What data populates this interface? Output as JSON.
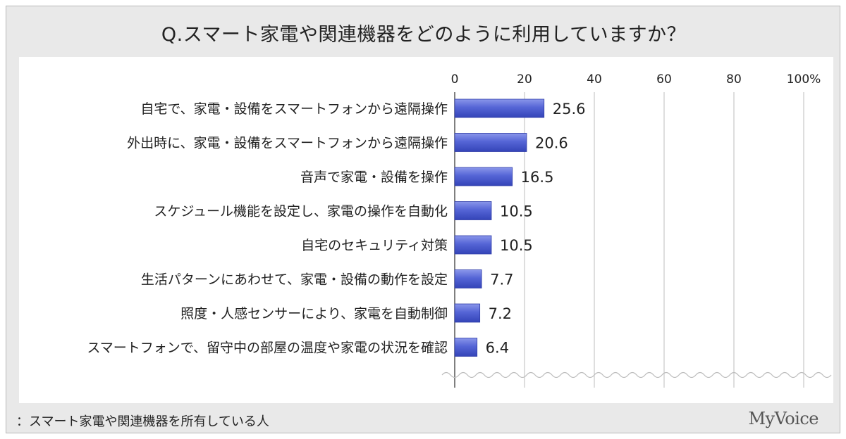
{
  "title": "Q.スマート家電や関連機器をどのように利用していますか？",
  "footnote": "：スマート家電や関連機器を所有している人",
  "brand": "MyVoice",
  "chart_data": {
    "type": "bar",
    "orientation": "horizontal",
    "categories": [
      "自宅で、家電・設備をスマートフォンから遠隔操作",
      "外出時に、家電・設備をスマートフォンから遠隔操作",
      "音声で家電・設備を操作",
      "スケジュール機能を設定し、家電の操作を自動化",
      "自宅のセキュリティ対策",
      "生活パターンにあわせて、家電・設備の動作を設定",
      "照度・人感センサーにより、家電を自動制御",
      "スマートフォンで、留守中の部屋の温度や家電の状況を確認"
    ],
    "values": [
      25.6,
      20.6,
      16.5,
      10.5,
      10.5,
      7.7,
      7.2,
      6.4
    ],
    "value_labels": [
      "25.6",
      "20.6",
      "16.5",
      "10.5",
      "10.5",
      "7.7",
      "7.2",
      "6.4"
    ],
    "xlim": [
      0,
      100
    ],
    "ticks": [
      0,
      20,
      40,
      60,
      80,
      100
    ],
    "tick_labels": [
      "0",
      "20",
      "40",
      "60",
      "80",
      "100%"
    ],
    "grid": true,
    "axis_position": "top",
    "bar_color": "#4f5fd0"
  }
}
